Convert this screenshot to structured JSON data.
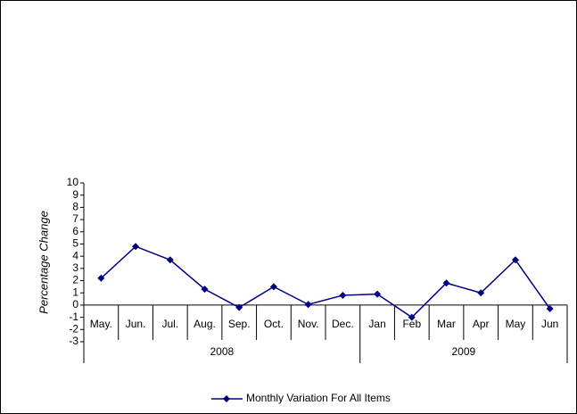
{
  "chart_data": {
    "type": "line",
    "y_label": "Percentage Change",
    "category_groups": [
      {
        "name": "2008",
        "categories": [
          "May.",
          "Jun.",
          "Jul.",
          "Aug.",
          "Sep.",
          "Oct.",
          "Nov.",
          "Dec."
        ]
      },
      {
        "name": "2009",
        "categories": [
          "Jan",
          "Feb",
          "Mar",
          "Apr",
          "May",
          "Jun"
        ]
      }
    ],
    "series": [
      {
        "name": "Monthly Variation For All Items",
        "color": "#000080",
        "values": [
          2.2,
          4.8,
          3.7,
          1.3,
          -0.2,
          1.5,
          0.05,
          0.8,
          0.9,
          -1.0,
          1.8,
          1.0,
          3.7,
          -0.3
        ]
      }
    ],
    "ylim": [
      -3,
      10
    ],
    "yticks": [
      -3,
      -2,
      -1,
      0,
      1,
      2,
      3,
      4,
      5,
      6,
      7,
      8,
      9,
      10
    ],
    "legend": "bottom"
  }
}
